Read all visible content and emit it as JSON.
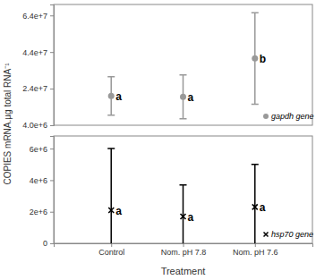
{
  "chart_data": [
    {
      "type": "scatter",
      "ylabel": "COPIES mRNA.µg total RNA⁻¹",
      "categories": [
        "Control",
        "Nom. pH 7.8",
        "Nom. pH 7.6"
      ],
      "tick_labels": "y",
      "ylim": [
        4000000,
        70000000
      ],
      "yticks": [
        {
          "value": 4000000,
          "label": "4.0e+6"
        },
        {
          "value": 24000000,
          "label": "2.4e+7"
        },
        {
          "value": 44000000,
          "label": "4.4e+7"
        },
        {
          "value": 64000000,
          "label": "6.4e+7"
        }
      ],
      "legend": "lower right",
      "series": [
        {
          "name": "gapdh gene",
          "color": "#999999",
          "marker": "circle",
          "values": [
            20000000,
            19500000,
            40500000
          ],
          "error": [
            10500000,
            12000000,
            25000000
          ]
        }
      ],
      "annotations": [
        "a",
        "a",
        "b"
      ]
    },
    {
      "type": "scatter",
      "xlabel": "Treatment",
      "categories": [
        "Control",
        "Nom. pH 7.8",
        "Nom. pH 7.6"
      ],
      "ylim": [
        0,
        6800000
      ],
      "yticks": [
        0,
        {
          "value": 2000000,
          "label": "2e+6"
        },
        {
          "value": 4000000,
          "label": "4e+6"
        },
        {
          "value": 6000000,
          "label": "6e+6"
        }
      ],
      "legend": "lower right",
      "series": [
        {
          "name": "hsp70 gene",
          "color": "#000000",
          "marker": "x",
          "values": [
            2100000,
            1700000,
            2300000
          ],
          "error": [
            3900000,
            2000000,
            2700000
          ]
        }
      ],
      "annotations": [
        "a",
        "a",
        "a"
      ]
    }
  ]
}
